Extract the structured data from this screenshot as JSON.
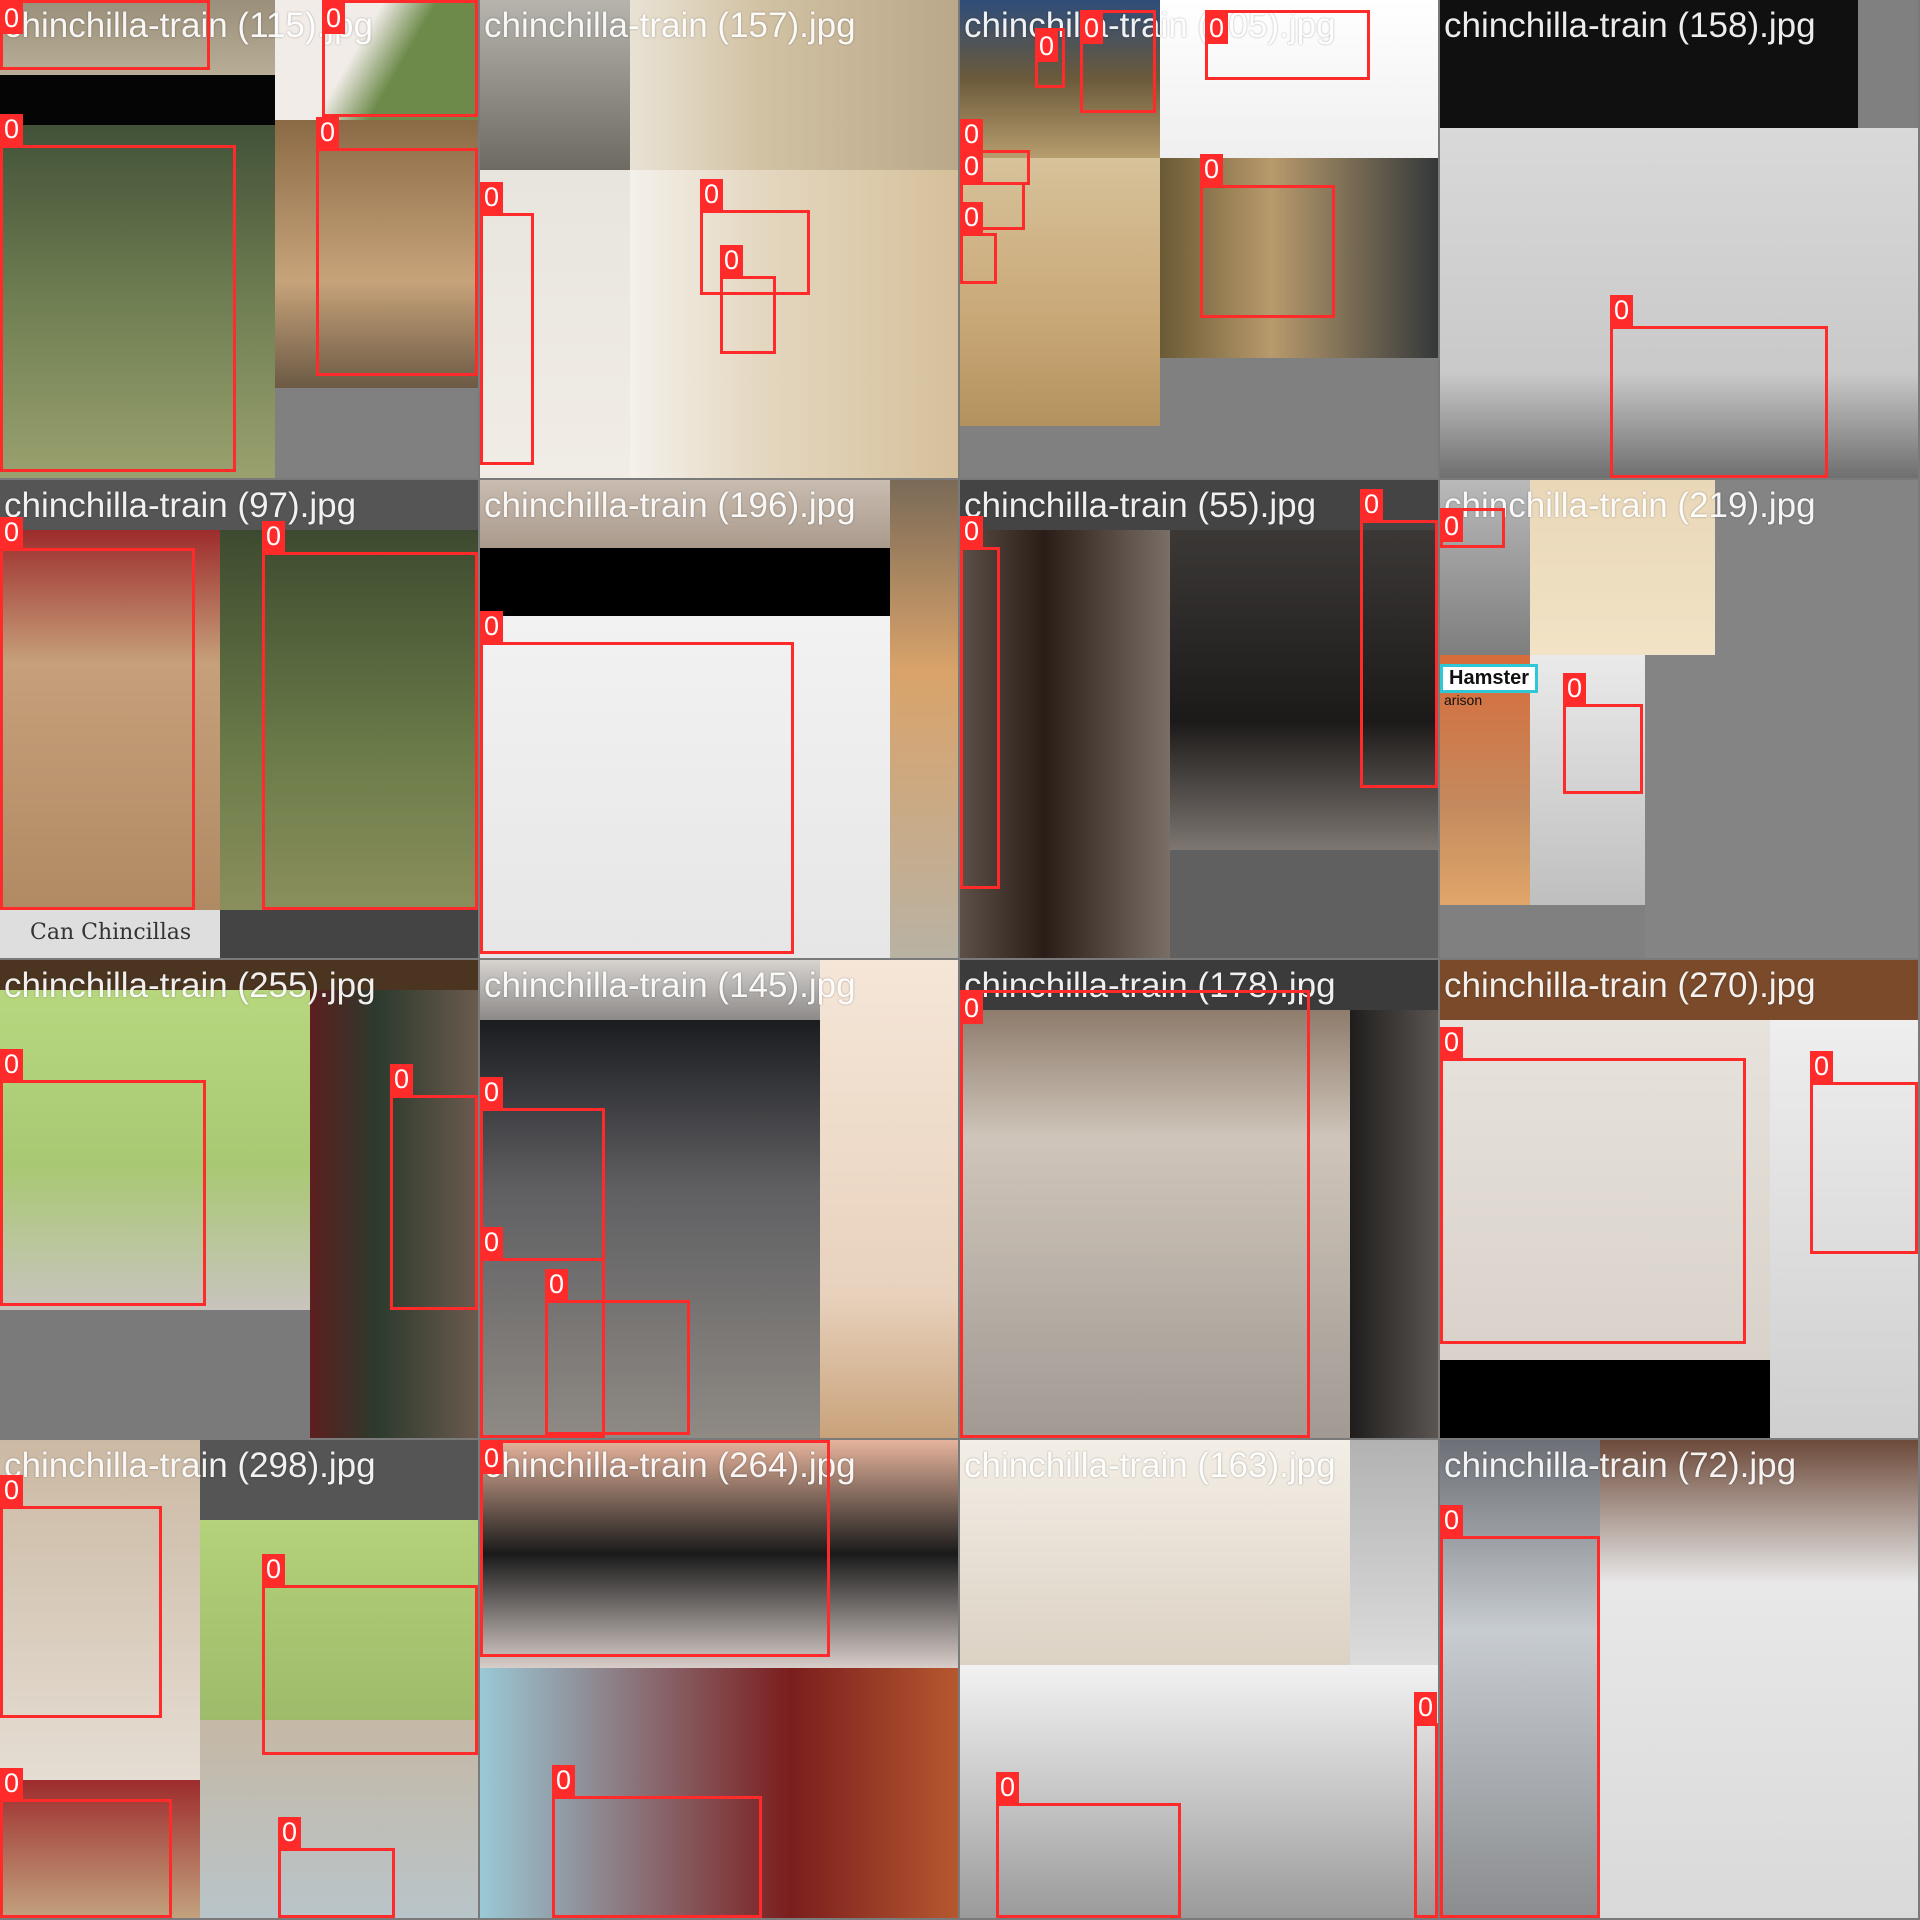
{
  "mosaic": {
    "tiles": [
      {
        "title": "chinchilla-train (115).jpg",
        "boxes": [
          "0",
          "0",
          "0",
          "0"
        ]
      },
      {
        "title": "chinchilla-train (157).jpg",
        "boxes": [
          "0",
          "0",
          "0"
        ]
      },
      {
        "title": "chinchilla-train (105).jpg",
        "boxes": [
          "0",
          "0",
          "0",
          "0",
          "0",
          "0",
          "0"
        ]
      },
      {
        "title": "chinchilla-train (158).jpg",
        "boxes": [
          "0"
        ]
      },
      {
        "title": "chinchilla-train (97).jpg",
        "boxes": [
          "0",
          "0"
        ],
        "caption": "Can Chincillas"
      },
      {
        "title": "chinchilla-train (196).jpg",
        "boxes": [
          "0"
        ]
      },
      {
        "title": "chinchilla-train (55).jpg",
        "boxes": [
          "0",
          "0"
        ]
      },
      {
        "title": "chinchilla-train (219).jpg",
        "boxes": [
          "0",
          "0"
        ],
        "caption": "Hamster",
        "caption2": "arison"
      },
      {
        "title": "chinchilla-train (255).jpg",
        "boxes": [
          "0",
          "0"
        ]
      },
      {
        "title": "chinchilla-train (145).jpg",
        "boxes": [
          "0",
          "0",
          "0"
        ]
      },
      {
        "title": "chinchilla-train (178).jpg",
        "boxes": [
          "0"
        ]
      },
      {
        "title": "chinchilla-train (270).jpg",
        "boxes": [
          "0",
          "0"
        ]
      },
      {
        "title": "chinchilla-train (298).jpg",
        "boxes": [
          "0",
          "0",
          "0",
          "0"
        ]
      },
      {
        "title": "chinchilla-train (264).jpg",
        "boxes": [
          "0",
          "0"
        ]
      },
      {
        "title": "chinchilla-train (163).jpg",
        "boxes": [
          "0",
          "0"
        ]
      },
      {
        "title": "chinchilla-train (72).jpg",
        "boxes": [
          "0"
        ]
      }
    ]
  },
  "colors": {
    "box": "#ff2b2b",
    "label_text": "#ffffff",
    "background": "#848484"
  }
}
